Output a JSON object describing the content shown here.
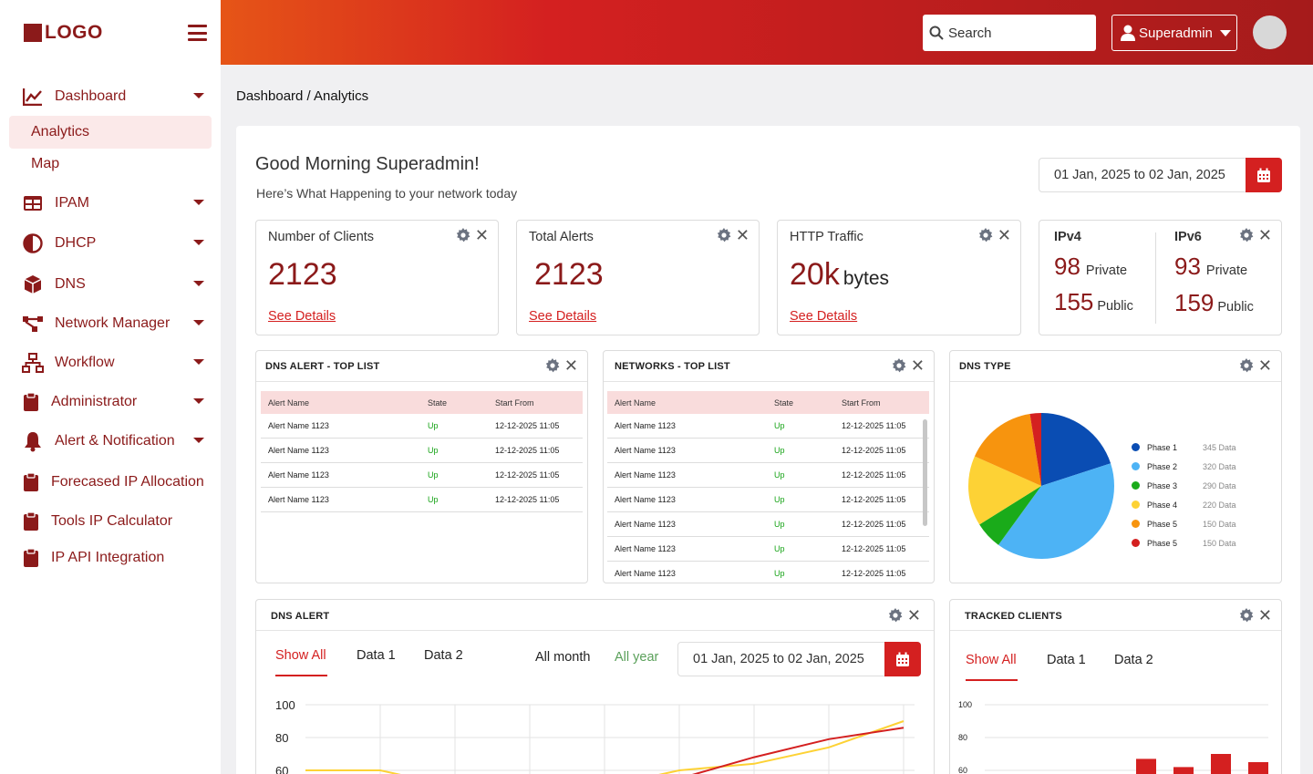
{
  "app": {
    "logo_text": "LOGO"
  },
  "sidebar": {
    "items": [
      {
        "label": "Dashboard",
        "icon": "line-chart-icon"
      },
      {
        "label": "Analytics"
      },
      {
        "label": "Map"
      },
      {
        "label": "IPAM",
        "icon": "table-icon"
      },
      {
        "label": "DHCP",
        "icon": "half-circle-icon"
      },
      {
        "label": "DNS",
        "icon": "cube-icon"
      },
      {
        "label": "Network Manager",
        "icon": "network-icon"
      },
      {
        "label": "Workflow",
        "icon": "sitemap-icon"
      },
      {
        "label": "Administrator",
        "icon": "clipboard-icon"
      },
      {
        "label": "Alert & Notification",
        "icon": "bell-icon"
      },
      {
        "label": "Forecased IP Allocation",
        "icon": "clipboard-icon"
      },
      {
        "label": "Tools IP Calculator",
        "icon": "clipboard-icon"
      },
      {
        "label": "IP API Integration",
        "icon": "clipboard-icon"
      }
    ]
  },
  "header": {
    "search_placeholder": "Search",
    "user_label": "Superadmin"
  },
  "breadcrumb": "Dashboard / Analytics",
  "greeting": {
    "title": "Good Morning Superadmin!",
    "subtitle": "Here’s What Happening to your network today",
    "date_range": "01 Jan, 2025 to 02 Jan, 2025"
  },
  "stats": {
    "clients": {
      "title": "Number of Clients",
      "value": "2123",
      "link": "See Details"
    },
    "alerts": {
      "title": "Total Alerts",
      "value": "2123",
      "link": "See Details"
    },
    "http": {
      "title": "HTTP Traffic",
      "value": "20k",
      "unit": "bytes",
      "link": "See Details"
    },
    "ip": {
      "ipv4": {
        "title": "IPv4",
        "private": "98",
        "public": "155"
      },
      "ipv6": {
        "title": "IPv6",
        "private": "93",
        "public": "159"
      },
      "private_label": "Private",
      "public_label": "Public"
    }
  },
  "dns_alert_top": {
    "title": "DNS ALERT - TOP LIST",
    "columns": [
      "Alert Name",
      "State",
      "Start From"
    ],
    "rows": [
      [
        "Alert Name 1123",
        "Up",
        "12-12-2025 11:05"
      ],
      [
        "Alert Name 1123",
        "Up",
        "12-12-2025 11:05"
      ],
      [
        "Alert Name 1123",
        "Up",
        "12-12-2025 11:05"
      ],
      [
        "Alert Name 1123",
        "Up",
        "12-12-2025 11:05"
      ]
    ]
  },
  "networks_top": {
    "title": "NETWORKS - TOP LIST",
    "columns": [
      "Alert Name",
      "State",
      "Start From"
    ],
    "rows": [
      [
        "Alert Name 1123",
        "Up",
        "12-12-2025 11:05"
      ],
      [
        "Alert Name 1123",
        "Up",
        "12-12-2025 11:05"
      ],
      [
        "Alert Name 1123",
        "Up",
        "12-12-2025 11:05"
      ],
      [
        "Alert Name 1123",
        "Up",
        "12-12-2025 11:05"
      ],
      [
        "Alert Name 1123",
        "Up",
        "12-12-2025 11:05"
      ],
      [
        "Alert Name 1123",
        "Up",
        "12-12-2025 11:05"
      ],
      [
        "Alert Name 1123",
        "Up",
        "12-12-2025 11:05"
      ]
    ]
  },
  "dns_type": {
    "title": "DNS TYPE",
    "legend": [
      {
        "name": "Phase 1",
        "value": "345 Data",
        "color": "#0a4db3"
      },
      {
        "name": "Phase 2",
        "value": "320 Data",
        "color": "#4db3f5"
      },
      {
        "name": "Phase 3",
        "value": "290 Data",
        "color": "#1aab1a"
      },
      {
        "name": "Phase 4",
        "value": "220 Data",
        "color": "#fdd235"
      },
      {
        "name": "Phase 5",
        "value": "150 Data",
        "color": "#f7940e"
      },
      {
        "name": "Phase 5",
        "value": "150 Data",
        "color": "#d42020"
      }
    ]
  },
  "chart_data": [
    {
      "type": "pie",
      "labels": [
        "Phase 1",
        "Phase 2",
        "Phase 3",
        "Phase 4",
        "Phase 5",
        "Phase 5"
      ],
      "values": [
        345,
        320,
        290,
        220,
        150,
        150
      ],
      "note_angles_deg": [
        0,
        72,
        216,
        238,
        294,
        351,
        360
      ]
    },
    {
      "type": "line",
      "title": "",
      "ylim": [
        0,
        100
      ],
      "yticks": [
        100,
        80,
        60
      ],
      "series": [
        {
          "color": "#d42020",
          "values": [
            null,
            null,
            null,
            null,
            null,
            55,
            68,
            79,
            86
          ]
        },
        {
          "color": "#fdd235",
          "values": [
            60,
            60,
            50,
            56,
            50,
            60,
            64,
            74,
            90
          ]
        }
      ]
    },
    {
      "type": "bar",
      "ylim": [
        0,
        100
      ],
      "yticks": [
        100,
        80,
        60
      ],
      "values": [
        67,
        62,
        70,
        65
      ],
      "color": "#d42020"
    }
  ],
  "dns_alert": {
    "title": "DNS ALERT",
    "tabs": [
      "Show All",
      "Data 1",
      "Data 2"
    ],
    "period_month": "All month",
    "period_year": "All year",
    "date_range": "01 Jan, 2025 to 02 Jan, 2025"
  },
  "tracked_clients": {
    "title": "TRACKED CLIENTS",
    "tabs": [
      "Show All",
      "Data 1",
      "Data 2"
    ]
  }
}
